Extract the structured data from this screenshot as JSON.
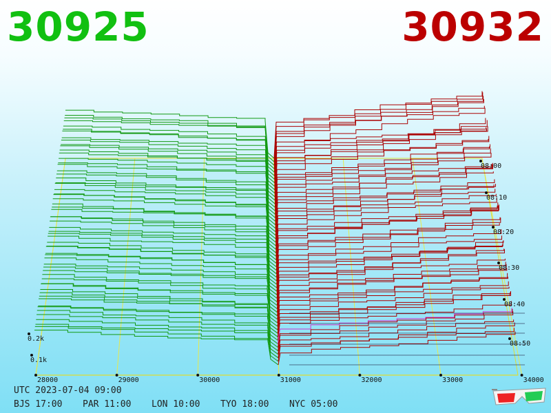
{
  "best_bid": "30925",
  "best_ask": "30932",
  "clocks": {
    "utc": "UTC 2023-07-04 09:00",
    "cities": [
      "BJS 17:00",
      "PAR 11:00",
      "LON 10:00",
      "TYO 18:00",
      "NYC 05:00"
    ]
  },
  "chart_data": {
    "type": "area",
    "x_ticks": [
      "28000",
      "29000",
      "30000",
      "31000",
      "32000",
      "33000",
      "34000"
    ],
    "y_ticks": [
      "0.1k",
      "0.2k"
    ],
    "time_ticks": [
      "08:00",
      "08:10",
      "08:20",
      "08:30",
      "08:40",
      "08:50"
    ],
    "mid_price": 30928,
    "bid_color": "#119911",
    "ask_color": "#aa0000",
    "slice_count": 60
  }
}
